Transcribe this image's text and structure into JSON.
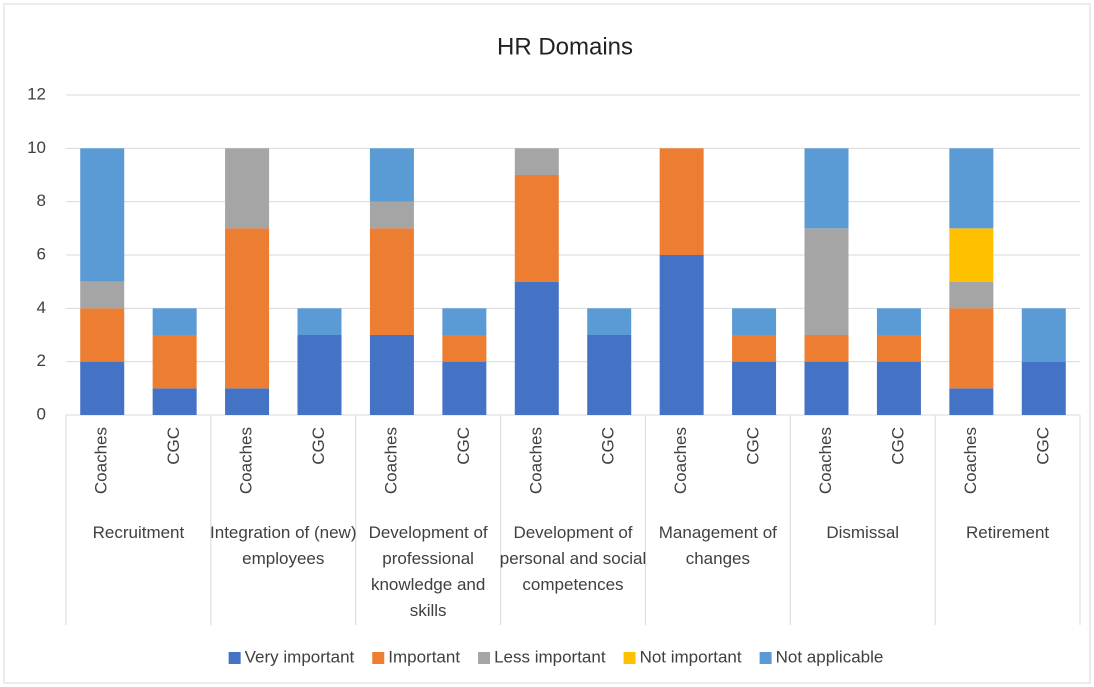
{
  "chart_data": {
    "type": "stacked_bar",
    "title": "HR Domains",
    "groups": [
      "Recruitment",
      "Integration of (new) employees",
      "Development of professional knowledge and skills",
      "Development of personal and social competences",
      "Management of changes",
      "Dismissal",
      "Retirement"
    ],
    "categories": [
      "Coaches",
      "CGC",
      "Coaches",
      "CGC",
      "Coaches",
      "CGC",
      "Coaches",
      "CGC",
      "Coaches",
      "CGC",
      "Coaches",
      "CGC",
      "Coaches",
      "CGC"
    ],
    "series": [
      {
        "name": "Very important",
        "color": "#4472c4",
        "values": [
          2,
          1,
          1,
          3,
          3,
          2,
          5,
          3,
          6,
          2,
          2,
          2,
          1,
          2
        ]
      },
      {
        "name": "Important",
        "color": "#ed7d31",
        "values": [
          2,
          2,
          6,
          0,
          4,
          1,
          4,
          0,
          4,
          1,
          1,
          1,
          3,
          0
        ]
      },
      {
        "name": "Less important",
        "color": "#a5a5a5",
        "values": [
          1,
          0,
          3,
          0,
          1,
          0,
          1,
          0,
          0,
          0,
          4,
          0,
          1,
          0
        ]
      },
      {
        "name": "Not important",
        "color": "#ffc000",
        "values": [
          0,
          0,
          0,
          0,
          0,
          0,
          0,
          0,
          0,
          0,
          0,
          0,
          2,
          0
        ]
      },
      {
        "name": "Not applicable",
        "color": "#5b9bd5",
        "values": [
          5,
          1,
          0,
          1,
          2,
          1,
          0,
          1,
          0,
          1,
          3,
          1,
          3,
          2
        ]
      }
    ],
    "ylim": [
      0,
      12
    ],
    "yticks": [
      0,
      2,
      4,
      6,
      8,
      10,
      12
    ],
    "grid": true,
    "legend": "bottom"
  }
}
